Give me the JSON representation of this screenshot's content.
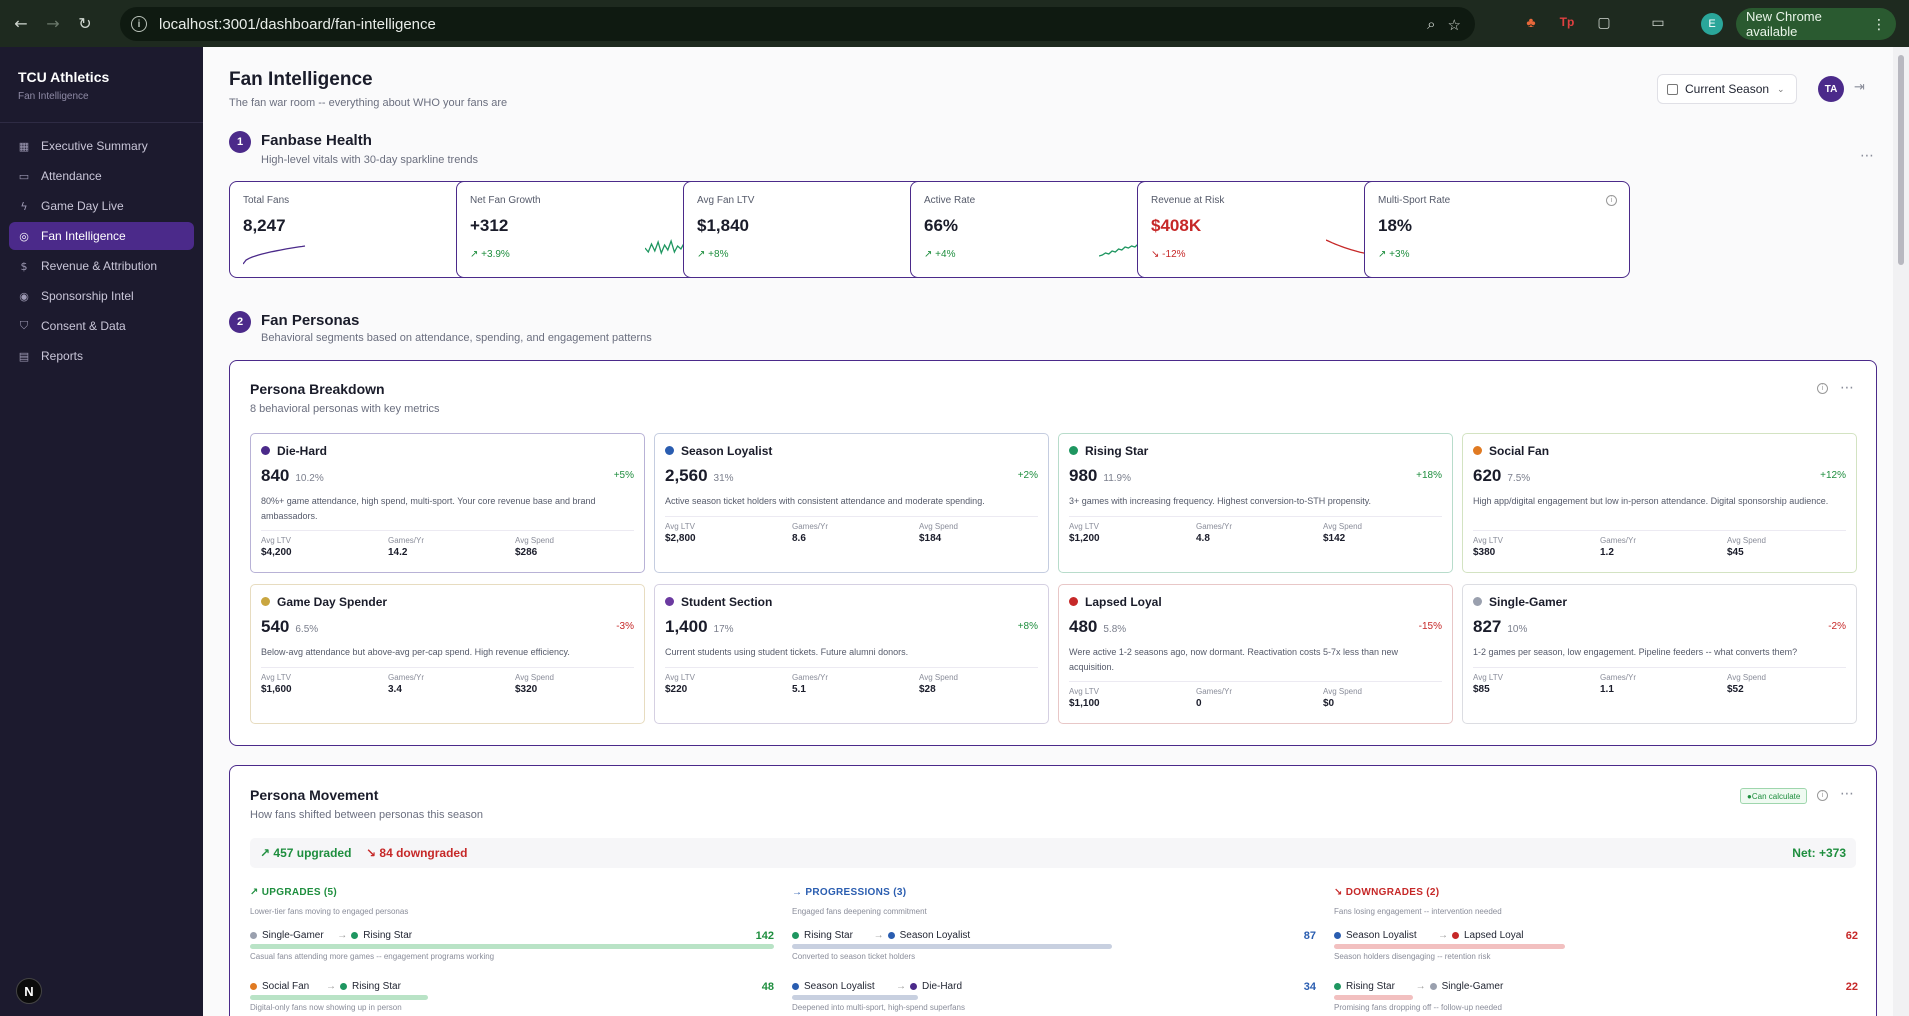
{
  "browser": {
    "url": "localhost:3001/dashboard/fan-intelligence",
    "profile_initial": "E",
    "new_chrome_label": "New Chrome available"
  },
  "sidebar": {
    "brand_name": "TCU Athletics",
    "brand_sub": "Fan Intelligence",
    "items": [
      {
        "label": "Executive Summary",
        "icon": "grid-icon"
      },
      {
        "label": "Attendance",
        "icon": "ticket-icon"
      },
      {
        "label": "Game Day Live",
        "icon": "bolt-icon"
      },
      {
        "label": "Fan Intelligence",
        "icon": "globe-icon",
        "active": true
      },
      {
        "label": "Revenue & Attribution",
        "icon": "dollar-icon"
      },
      {
        "label": "Sponsorship Intel",
        "icon": "target-icon"
      },
      {
        "label": "Consent & Data",
        "icon": "shield-icon"
      },
      {
        "label": "Reports",
        "icon": "document-icon"
      }
    ],
    "badge": "N"
  },
  "header": {
    "title": "Fan Intelligence",
    "subtitle": "The fan war room -- everything about WHO your fans are",
    "season": "Current Season",
    "avatar": "TA"
  },
  "fanbase_health": {
    "number": "1",
    "title": "Fanbase Health",
    "subtitle": "High-level vitals with 30-day sparkline trends",
    "kpis": [
      {
        "label": "Total Fans",
        "value": "8,247",
        "change": "",
        "spark": "up"
      },
      {
        "label": "Net Fan Growth",
        "value": "+312",
        "change": "+3.9%",
        "spark": "volatile"
      },
      {
        "label": "Avg Fan LTV",
        "value": "$1,840",
        "change": "+8%",
        "spark": "none"
      },
      {
        "label": "Active Rate",
        "value": "66%",
        "change": "+4%",
        "spark": "rising"
      },
      {
        "label": "Revenue at Risk",
        "value": "$408K",
        "change": "-12%",
        "spark": "declining",
        "negative": true
      },
      {
        "label": "Multi-Sport Rate",
        "value": "18%",
        "change": "+3%",
        "spark": "none"
      }
    ]
  },
  "fan_personas": {
    "number": "2",
    "title": "Fan Personas",
    "subtitle": "Behavioral segments based on attendance, spending, and engagement patterns",
    "breakdown": {
      "title": "Persona Breakdown",
      "subtitle": "8 behavioral personas with key metrics",
      "metric_labels": {
        "ltv": "Avg LTV",
        "games": "Games/Yr",
        "spend": "Avg Spend"
      },
      "personas": [
        {
          "name": "Die-Hard",
          "color": "#4b2a8a",
          "border": "#b8b2d6",
          "count": "840",
          "pct": "10.2%",
          "change": "+5%",
          "desc": "80%+ game attendance, high spend, multi-sport. Your core revenue base and brand ambassadors.",
          "ltv": "$4,200",
          "games": "14.2",
          "spend": "$286"
        },
        {
          "name": "Season Loyalist",
          "color": "#2a5db0",
          "border": "#c5cde0",
          "count": "2,560",
          "pct": "31%",
          "change": "+2%",
          "desc": "Active season ticket holders with consistent attendance and moderate spending.",
          "ltv": "$2,800",
          "games": "8.6",
          "spend": "$184"
        },
        {
          "name": "Rising Star",
          "color": "#1e9660",
          "border": "#b8dccb",
          "count": "980",
          "pct": "11.9%",
          "change": "+18%",
          "desc": "3+ games with increasing frequency. Highest conversion-to-STH propensity.",
          "ltv": "$1,200",
          "games": "4.8",
          "spend": "$142"
        },
        {
          "name": "Social Fan",
          "color": "#e07a22",
          "border": "#d3e3c2",
          "count": "620",
          "pct": "7.5%",
          "change": "+12%",
          "desc": "High app/digital engagement but low in-person attendance. Digital sponsorship audience.",
          "ltv": "$380",
          "games": "1.2",
          "spend": "$45"
        },
        {
          "name": "Game Day Spender",
          "color": "#c9a640",
          "border": "#e7dcc0",
          "count": "540",
          "pct": "6.5%",
          "change": "-3%",
          "desc": "Below-avg attendance but above-avg per-cap spend. High revenue efficiency.",
          "ltv": "$1,600",
          "games": "3.4",
          "spend": "$320"
        },
        {
          "name": "Student Section",
          "color": "#6b3aa0",
          "border": "#d5d0e2",
          "count": "1,400",
          "pct": "17%",
          "change": "+8%",
          "desc": "Current students using student tickets. Future alumni donors.",
          "ltv": "$220",
          "games": "5.1",
          "spend": "$28"
        },
        {
          "name": "Lapsed Loyal",
          "color": "#c62828",
          "border": "#e8c7c7",
          "count": "480",
          "pct": "5.8%",
          "change": "-15%",
          "desc": "Were active 1-2 seasons ago, now dormant. Reactivation costs 5-7x less than new acquisition.",
          "ltv": "$1,100",
          "games": "0",
          "spend": "$0"
        },
        {
          "name": "Single-Gamer",
          "color": "#9aa0ae",
          "border": "#dcdde2",
          "count": "827",
          "pct": "10%",
          "change": "-2%",
          "desc": "1-2 games per season, low engagement. Pipeline feeders -- what converts them?",
          "ltv": "$85",
          "games": "1.1",
          "spend": "$52"
        }
      ]
    },
    "movement": {
      "title": "Persona Movement",
      "subtitle": "How fans shifted between personas this season",
      "badge": "Can calculate",
      "upgraded": "457 upgraded",
      "downgraded": "84 downgraded",
      "net": "Net: +373",
      "columns": [
        {
          "title": "UPGRADES (5)",
          "subtitle": "Lower-tier fans moving to engaged personas",
          "color": "#1e8e3e",
          "bar": "#b9e3c6",
          "rows": [
            {
              "from": "Single-Gamer",
              "from_color": "#9aa0ae",
              "to": "Rising Star",
              "to_color": "#1e9660",
              "count": "142",
              "share": 1.0,
              "note": "Casual fans attending more games -- engagement programs working"
            },
            {
              "from": "Social Fan",
              "from_color": "#e07a22",
              "to": "Rising Star",
              "to_color": "#1e9660",
              "count": "48",
              "share": 0.34,
              "note": "Digital-only fans now showing up in person"
            }
          ]
        },
        {
          "title": "PROGRESSIONS (3)",
          "subtitle": "Engaged fans deepening commitment",
          "color": "#2a5db0",
          "bar": "#c8d0e0",
          "rows": [
            {
              "from": "Rising Star",
              "from_color": "#1e9660",
              "to": "Season Loyalist",
              "to_color": "#2a5db0",
              "count": "87",
              "share": 0.61,
              "note": "Converted to season ticket holders"
            },
            {
              "from": "Season Loyalist",
              "from_color": "#2a5db0",
              "to": "Die-Hard",
              "to_color": "#4b2a8a",
              "count": "34",
              "share": 0.24,
              "note": "Deepened into multi-sport, high-spend superfans"
            }
          ]
        },
        {
          "title": "DOWNGRADES (2)",
          "subtitle": "Fans losing engagement -- intervention needed",
          "color": "#c62828",
          "bar": "#f2c0c0",
          "rows": [
            {
              "from": "Season Loyalist",
              "from_color": "#2a5db0",
              "to": "Lapsed Loyal",
              "to_color": "#c62828",
              "count": "62",
              "share": 0.44,
              "note": "Season holders disengaging -- retention risk"
            },
            {
              "from": "Rising Star",
              "from_color": "#1e9660",
              "to": "Single-Gamer",
              "to_color": "#9aa0ae",
              "count": "22",
              "share": 0.15,
              "note": "Promising fans dropping off -- follow-up needed"
            }
          ]
        }
      ]
    }
  }
}
